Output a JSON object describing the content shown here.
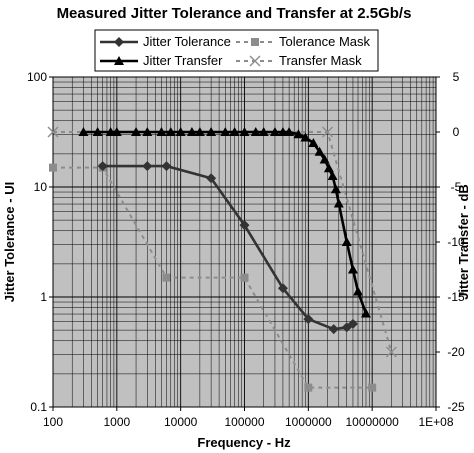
{
  "chart_data": {
    "type": "line",
    "title": "Measured Jitter Tolerance and Transfer at 2.5Gb/s",
    "xlabel": "Frequency - Hz",
    "ylabel": "Jitter Tolerance - UI",
    "y2label": "Jitter Transfer - dB",
    "x_scale": "log",
    "xlim": [
      100,
      100000000
    ],
    "x_ticks": [
      "100",
      "1000",
      "10000",
      "100000",
      "1000000",
      "10000000",
      "1E+08"
    ],
    "y_scale": "log",
    "ylim": [
      0.1,
      100
    ],
    "y_ticks": [
      "100",
      "10",
      "1",
      "0.1"
    ],
    "y2lim": [
      -25,
      5
    ],
    "y2_ticks": [
      "5",
      "0",
      "-5",
      "-10",
      "-15",
      "-20",
      "-25"
    ],
    "grid": true,
    "legend_position": "top",
    "series": [
      {
        "name": "Jitter Tolerance",
        "axis": "left",
        "color": "#333333",
        "marker": "diamond",
        "line": "solid",
        "points": [
          [
            600,
            15.5
          ],
          [
            3000,
            15.5
          ],
          [
            6000,
            15.5
          ],
          [
            30000,
            12
          ],
          [
            100000,
            4.5
          ],
          [
            400000,
            1.2
          ],
          [
            1000000,
            0.63
          ],
          [
            2500000,
            0.51
          ],
          [
            4000000,
            0.53
          ],
          [
            5000000,
            0.57
          ]
        ]
      },
      {
        "name": "Tolerance Mask",
        "axis": "left",
        "color": "#8c8c8c",
        "marker": "square",
        "line": "dashed",
        "points": [
          [
            100,
            15
          ],
          [
            600,
            15
          ],
          [
            6000,
            1.5
          ],
          [
            100000,
            1.5
          ],
          [
            1000000,
            0.15
          ],
          [
            10000000,
            0.15
          ]
        ]
      },
      {
        "name": "Jitter Transfer",
        "axis": "right",
        "color": "#000000",
        "marker": "triangle",
        "line": "solid",
        "points": [
          [
            300,
            0
          ],
          [
            500,
            0
          ],
          [
            800,
            0
          ],
          [
            1000,
            0
          ],
          [
            2000,
            0
          ],
          [
            3000,
            0
          ],
          [
            5000,
            0
          ],
          [
            7000,
            0
          ],
          [
            10000,
            0
          ],
          [
            15000,
            0
          ],
          [
            20000,
            0
          ],
          [
            30000,
            0
          ],
          [
            50000,
            0
          ],
          [
            70000,
            0
          ],
          [
            100000,
            0
          ],
          [
            150000,
            0
          ],
          [
            200000,
            0
          ],
          [
            300000,
            0
          ],
          [
            400000,
            0
          ],
          [
            500000,
            0
          ],
          [
            700000,
            -0.2
          ],
          [
            900000,
            -0.5
          ],
          [
            1200000,
            -1
          ],
          [
            1500000,
            -1.8
          ],
          [
            1800000,
            -2.5
          ],
          [
            2100000,
            -3.3
          ],
          [
            2400000,
            -4
          ],
          [
            2700000,
            -5.2
          ],
          [
            3000000,
            -6.5
          ],
          [
            4000000,
            -10
          ],
          [
            5000000,
            -12.5
          ],
          [
            6000000,
            -14.5
          ],
          [
            8000000,
            -16.5
          ]
        ]
      },
      {
        "name": "Transfer Mask",
        "axis": "right",
        "color": "#8c8c8c",
        "marker": "x",
        "line": "dashed",
        "points": [
          [
            100,
            0
          ],
          [
            2000000,
            0
          ],
          [
            20000000,
            -20
          ]
        ]
      }
    ]
  }
}
